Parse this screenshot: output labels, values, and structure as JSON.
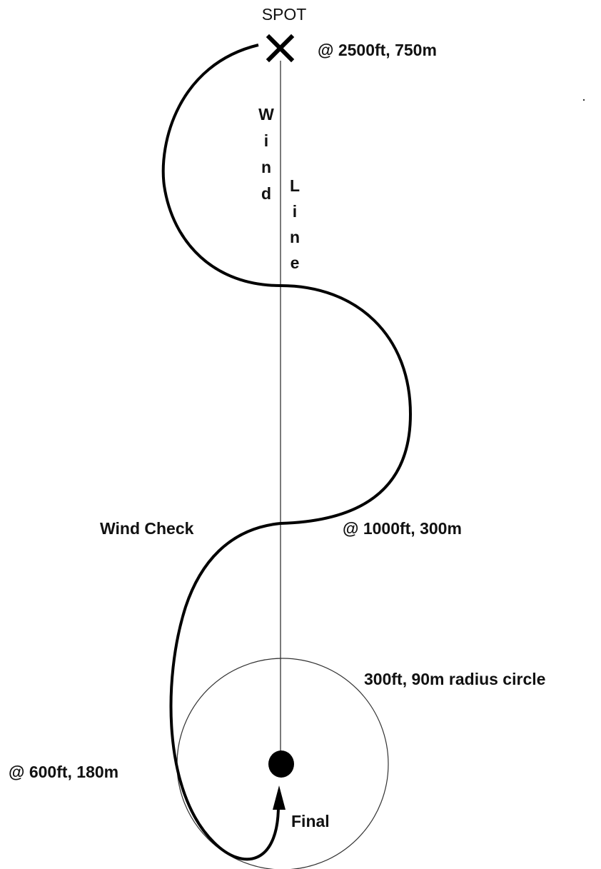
{
  "spot": "SPOT",
  "spot_altitude": "@ 2500ft, 750m",
  "wind_line": {
    "left": "Wind",
    "right": "Line"
  },
  "wind_check": "Wind Check",
  "mid_altitude": "@ 1000ft, 300m",
  "circle_label": "300ft, 90m radius circle",
  "low_altitude": "@ 600ft, 180m",
  "final": "Final"
}
